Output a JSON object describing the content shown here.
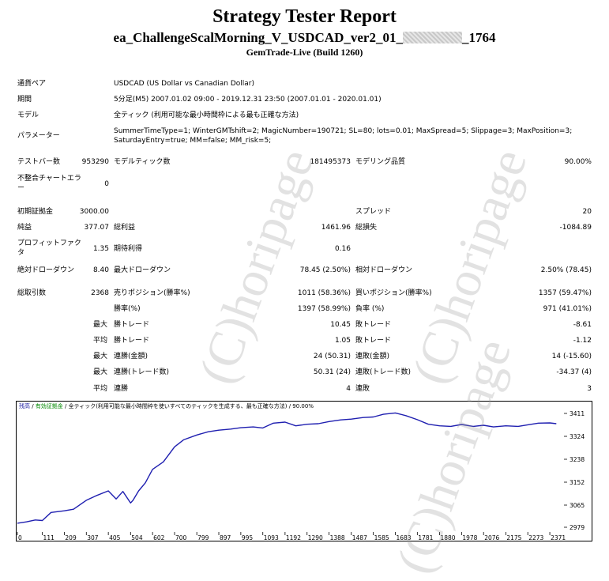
{
  "header": {
    "title": "Strategy Tester Report",
    "ea_prefix": "ea_ChallengeScalMorning_V_USDCAD_ver2_01_",
    "ea_suffix": "_1764",
    "build": "GemTrade-Live (Build 1260)"
  },
  "info": {
    "symbol_label": "通貨ペア",
    "symbol_value": "USDCAD (US Dollar vs Canadian Dollar)",
    "period_label": "期間",
    "period_value": "5分足(M5) 2007.01.02 09:00 - 2019.12.31 23:50 (2007.01.01 - 2020.01.01)",
    "model_label": "モデル",
    "model_value": "全ティック (利用可能な最小時間枠による最も正確な方法)",
    "params_label": "パラメーター",
    "params_value": "SummerTimeType=1; WinterGMTshift=2; MagicNumber=190721; SL=80; lots=0.01; MaxSpread=5; Slippage=3; MaxPosition=3; SaturdayEntry=true; MM=false; MM_risk=5;"
  },
  "stats": {
    "bars_label": "テストバー数",
    "bars_value": "953290",
    "ticks_label": "モデルティック数",
    "ticks_value": "181495373",
    "quality_label": "モデリング品質",
    "quality_value": "90.00%",
    "mismatch_label": "不整合チャートエラー",
    "mismatch_value": "0",
    "deposit_label": "初期証拠金",
    "deposit_value": "3000.00",
    "spread_label": "スプレッド",
    "spread_value": "20",
    "net_label": "純益",
    "net_value": "377.07",
    "gross_profit_label": "総利益",
    "gross_profit_value": "1461.96",
    "gross_loss_label": "総損失",
    "gross_loss_value": "-1084.89",
    "pf_label": "プロフィットファクタ",
    "pf_value": "1.35",
    "expected_label": "期待利得",
    "expected_value": "0.16",
    "abs_dd_label": "絶対ドローダウン",
    "abs_dd_value": "8.40",
    "max_dd_label": "最大ドローダウン",
    "max_dd_value": "78.45 (2.50%)",
    "rel_dd_label": "相対ドローダウン",
    "rel_dd_value": "2.50% (78.45)",
    "total_trades_label": "総取引数",
    "total_trades_value": "2368",
    "short_label": "売りポジション(勝率%)",
    "short_value": "1011 (58.36%)",
    "long_label": "買いポジション(勝率%)",
    "long_value": "1357 (59.47%)",
    "win_label": "勝率(%)",
    "win_value": "1397 (58.99%)",
    "loss_label": "負率 (%)",
    "loss_value": "971 (41.01%)",
    "max_word": "最大",
    "avg_word": "平均",
    "win_trade_label": "勝トレード",
    "loss_trade_label": "敗トレード",
    "max_win_value": "10.45",
    "max_loss_value": "-8.61",
    "avg_win_value": "1.05",
    "avg_loss_value": "-1.12",
    "cons_win_amt_label": "連勝(金額)",
    "cons_win_amt_value": "24 (50.31)",
    "cons_loss_amt_label": "連敗(金額)",
    "cons_loss_amt_value": "14 (-15.60)",
    "cons_win_tr_label": "連勝(トレード数)",
    "cons_win_tr_value": "50.31 (24)",
    "cons_loss_tr_label": "連敗(トレード数)",
    "cons_loss_tr_value": "-34.37 (4)",
    "avg_cons_win_label": "連勝",
    "avg_cons_win_value": "4",
    "avg_cons_loss_label": "連敗",
    "avg_cons_loss_value": "3"
  },
  "watermark": "(C)horipage",
  "chart_data": {
    "type": "line",
    "legend": {
      "balance": "残高",
      "sep1": " / ",
      "equity": "有効証拠金",
      "sep2": " / ",
      "model": "全ティック(利用可能な最小時間枠を使いすべてのティックを生成する、最も正確な方法) / 90.00%"
    },
    "x_ticks": [
      "0",
      "111",
      "209",
      "307",
      "405",
      "504",
      "602",
      "700",
      "799",
      "897",
      "995",
      "1093",
      "1192",
      "1290",
      "1388",
      "1487",
      "1585",
      "1683",
      "1781",
      "1880",
      "1978",
      "2076",
      "2175",
      "2273",
      "2371"
    ],
    "y_ticks": [
      "3411",
      "3324",
      "3238",
      "3152",
      "3065",
      "2979"
    ],
    "xlim": [
      0,
      2420
    ],
    "ylim": [
      2979,
      3420
    ],
    "x": [
      0,
      40,
      80,
      111,
      150,
      209,
      250,
      307,
      350,
      405,
      440,
      470,
      504,
      515,
      540,
      570,
      602,
      650,
      700,
      740,
      799,
      850,
      897,
      950,
      995,
      1050,
      1093,
      1140,
      1192,
      1240,
      1290,
      1340,
      1388,
      1440,
      1487,
      1540,
      1585,
      1630,
      1683,
      1730,
      1781,
      1830,
      1880,
      1930,
      1978,
      2030,
      2076,
      2120,
      2175,
      2230,
      2273,
      2320,
      2371,
      2400
    ],
    "y": [
      3000,
      3005,
      3012,
      3010,
      3040,
      3046,
      3052,
      3085,
      3102,
      3120,
      3090,
      3118,
      3075,
      3085,
      3120,
      3150,
      3200,
      3228,
      3284,
      3310,
      3328,
      3340,
      3346,
      3350,
      3355,
      3358,
      3354,
      3372,
      3376,
      3362,
      3368,
      3370,
      3378,
      3384,
      3387,
      3393,
      3395,
      3405,
      3410,
      3400,
      3385,
      3368,
      3362,
      3360,
      3367,
      3360,
      3364,
      3358,
      3362,
      3360,
      3366,
      3372,
      3373,
      3370
    ],
    "colors": {
      "line": "#1f1fb0",
      "legend_balance": "#1a1aa0",
      "legend_equity": "#008800",
      "axis": "#000000"
    }
  }
}
